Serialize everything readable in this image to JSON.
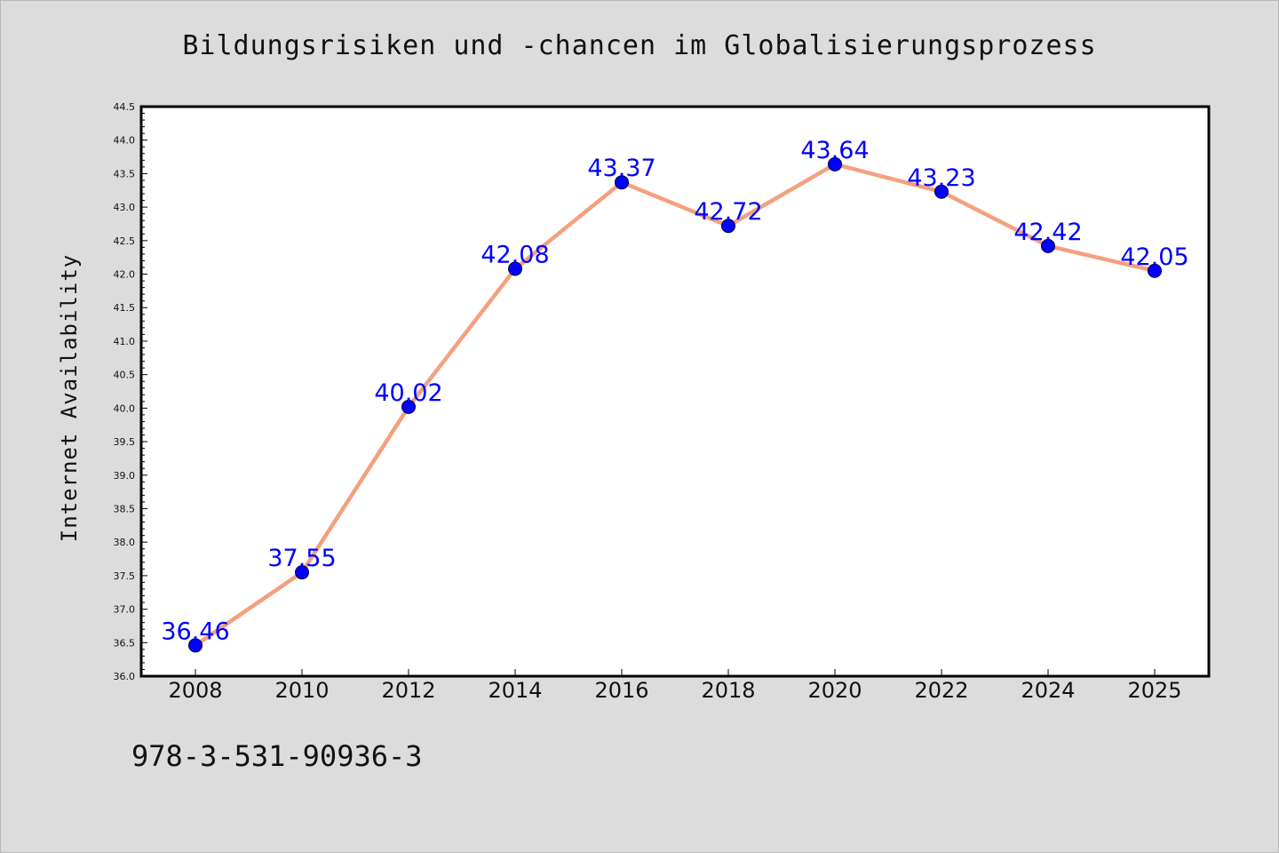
{
  "chart_data": {
    "type": "line",
    "title": "Bildungsrisiken und -chancen im Globalisierungsprozess",
    "xlabel": "",
    "ylabel": "Internet Availability",
    "categories": [
      "2008",
      "2010",
      "2012",
      "2014",
      "2016",
      "2018",
      "2020",
      "2022",
      "2024",
      "2025"
    ],
    "values": [
      36.46,
      37.55,
      40.02,
      42.08,
      43.37,
      42.72,
      43.64,
      43.23,
      42.42,
      42.05
    ],
    "data_labels": [
      "36.46",
      "37.55",
      "40.02",
      "42.08",
      "43.37",
      "42.72",
      "43.64",
      "43.23",
      "42.42",
      "42.05"
    ],
    "ylim": [
      36.0,
      44.5
    ],
    "yticks": [
      "36.0",
      "36.5",
      "37.0",
      "37.5",
      "38.0",
      "38.5",
      "39.0",
      "39.5",
      "40.0",
      "40.5",
      "41.0",
      "41.5",
      "42.0",
      "42.5",
      "43.0",
      "43.5",
      "44.0",
      "44.5"
    ],
    "grid": false,
    "line_color": "#f4a07f",
    "marker_color": "#0000ff",
    "label_color": "#0000ff"
  },
  "footer": {
    "isbn": "978-3-531-90936-3"
  }
}
